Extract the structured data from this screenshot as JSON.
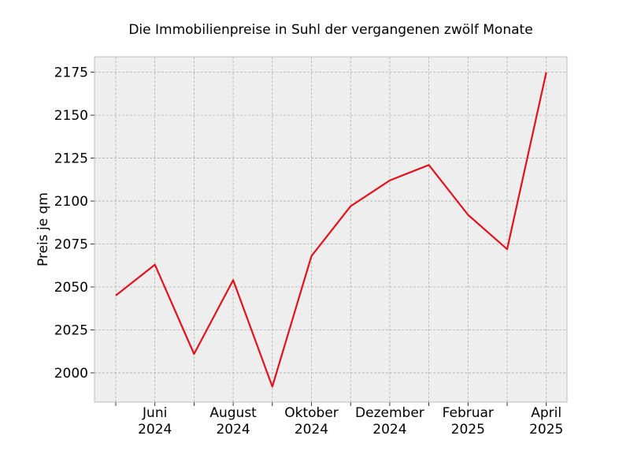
{
  "chart_data": {
    "type": "line",
    "title": "Die Immobilienpreise in Suhl der vergangenen zwölf Monate",
    "xlabel": "",
    "ylabel": "Preis je qm",
    "x": [
      "2024-05",
      "2024-06",
      "2024-07",
      "2024-08",
      "2024-09",
      "2024-10",
      "2024-11",
      "2024-12",
      "2025-01",
      "2025-02",
      "2025-03",
      "2025-04"
    ],
    "series": [
      {
        "values": [
          2045,
          2063,
          2011,
          2054,
          1992,
          2068,
          2097,
          2112,
          2121,
          2092,
          2072,
          2175
        ]
      }
    ],
    "x_tick_labels": [
      {
        "x": "2024-06",
        "month": "Juni",
        "year": "2024"
      },
      {
        "x": "2024-08",
        "month": "August",
        "year": "2024"
      },
      {
        "x": "2024-10",
        "month": "Oktober",
        "year": "2024"
      },
      {
        "x": "2024-12",
        "month": "Dezember",
        "year": "2024"
      },
      {
        "x": "2025-02",
        "month": "Februar",
        "year": "2025"
      },
      {
        "x": "2025-04",
        "month": "April",
        "year": "2025"
      }
    ],
    "minor_x_ticks": [
      "2024-05",
      "2024-07",
      "2024-09",
      "2024-11",
      "2025-01",
      "2025-03"
    ],
    "y_ticks": [
      2000,
      2025,
      2050,
      2075,
      2100,
      2125,
      2150,
      2175
    ],
    "ylim": [
      1983,
      2184
    ],
    "grid": true,
    "colors": {
      "line": "#e2121c",
      "background": "#eeeeee"
    }
  }
}
